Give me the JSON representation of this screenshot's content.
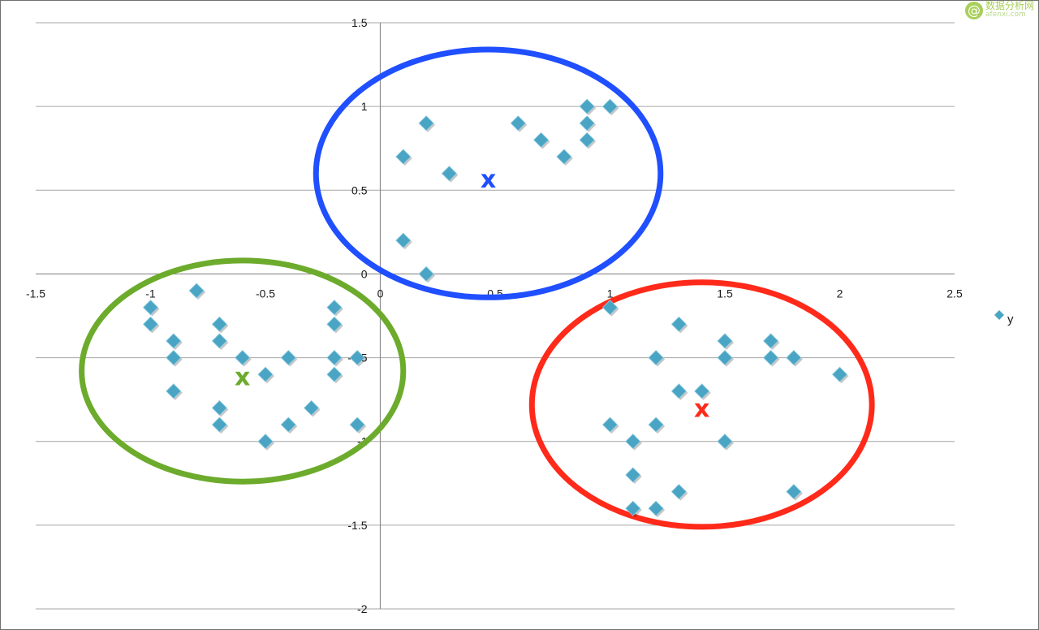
{
  "chart_data": {
    "type": "scatter",
    "xlim": [
      -1.5,
      2.5
    ],
    "ylim": [
      -2,
      1.5
    ],
    "x_ticks": [
      "-1.5",
      "-1",
      "-0.5",
      "0",
      "0.5",
      "1",
      "1.5",
      "2",
      "2.5"
    ],
    "y_ticks": [
      "1.5",
      "1",
      "0.5",
      "0",
      "-0.5",
      "-1",
      "-1.5",
      "-2"
    ],
    "grid": "horizontal",
    "legend_position": "right",
    "series": [
      {
        "name": "y",
        "color": "#4aa5c4",
        "marker": "diamond",
        "points": [
          [
            0.1,
            0.7
          ],
          [
            0.2,
            0.9
          ],
          [
            0.3,
            0.6
          ],
          [
            0.6,
            0.9
          ],
          [
            0.7,
            0.8
          ],
          [
            0.8,
            0.7
          ],
          [
            0.9,
            1.0
          ],
          [
            0.9,
            0.9
          ],
          [
            0.9,
            0.8
          ],
          [
            1.0,
            1.0
          ],
          [
            0.1,
            0.2
          ],
          [
            0.2,
            0.0
          ],
          [
            -1.0,
            -0.2
          ],
          [
            -1.0,
            -0.3
          ],
          [
            -0.8,
            -0.1
          ],
          [
            -0.9,
            -0.4
          ],
          [
            -0.9,
            -0.5
          ],
          [
            -0.9,
            -0.7
          ],
          [
            -0.7,
            -0.3
          ],
          [
            -0.7,
            -0.4
          ],
          [
            -0.6,
            -0.5
          ],
          [
            -0.7,
            -0.8
          ],
          [
            -0.7,
            -0.9
          ],
          [
            -0.5,
            -0.6
          ],
          [
            -0.5,
            -1.0
          ],
          [
            -0.4,
            -0.5
          ],
          [
            -0.4,
            -0.9
          ],
          [
            -0.3,
            -0.8
          ],
          [
            -0.2,
            -0.2
          ],
          [
            -0.2,
            -0.3
          ],
          [
            -0.2,
            -0.5
          ],
          [
            -0.2,
            -0.6
          ],
          [
            -0.1,
            -0.5
          ],
          [
            -0.1,
            -0.9
          ],
          [
            1.0,
            -0.2
          ],
          [
            1.3,
            -0.3
          ],
          [
            1.2,
            -0.5
          ],
          [
            1.5,
            -0.4
          ],
          [
            1.5,
            -0.5
          ],
          [
            1.7,
            -0.4
          ],
          [
            1.7,
            -0.5
          ],
          [
            1.8,
            -0.5
          ],
          [
            2.0,
            -0.6
          ],
          [
            1.3,
            -0.7
          ],
          [
            1.4,
            -0.7
          ],
          [
            1.0,
            -0.9
          ],
          [
            1.2,
            -0.9
          ],
          [
            1.1,
            -1.0
          ],
          [
            1.5,
            -1.0
          ],
          [
            1.1,
            -1.2
          ],
          [
            1.1,
            -1.4
          ],
          [
            1.2,
            -1.4
          ],
          [
            1.3,
            -1.3
          ],
          [
            1.8,
            -1.3
          ]
        ]
      }
    ],
    "clusters": [
      {
        "color": "#1f4fff",
        "centroid": [
          0.47,
          0.57
        ],
        "center": [
          0.47,
          0.6
        ],
        "radius": [
          0.75,
          0.74
        ],
        "label": "x"
      },
      {
        "color": "#6cab2c",
        "centroid": [
          -0.6,
          -0.61
        ],
        "center": [
          -0.6,
          -0.58
        ],
        "radius": [
          0.7,
          0.66
        ],
        "label": "x"
      },
      {
        "color": "#ff2a1a",
        "centroid": [
          1.4,
          -0.8
        ],
        "center": [
          1.4,
          -0.78
        ],
        "radius": [
          0.74,
          0.73
        ],
        "label": "x"
      }
    ]
  },
  "watermark": {
    "symbol": "@",
    "name": "数据分析网",
    "domain": "afenxi.com"
  }
}
